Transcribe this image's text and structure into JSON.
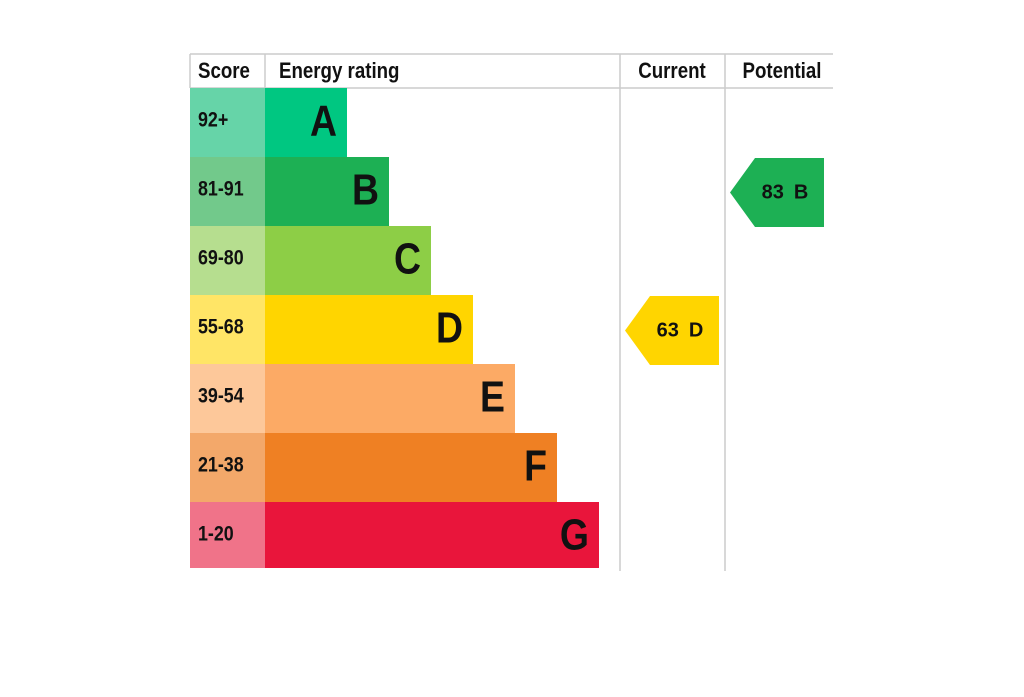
{
  "header": {
    "score": "Score",
    "energy_rating": "Energy rating",
    "current": "Current",
    "potential": "Potential"
  },
  "bands": [
    {
      "range": "92+",
      "letter": "A",
      "color": "#00c781",
      "score_color": "#66d4a8"
    },
    {
      "range": "81-91",
      "letter": "B",
      "color": "#1db054",
      "score_color": "#72c98b"
    },
    {
      "range": "69-80",
      "letter": "C",
      "color": "#8dce46",
      "score_color": "#b6de8f"
    },
    {
      "range": "55-68",
      "letter": "D",
      "color": "#ffd500",
      "score_color": "#ffe566"
    },
    {
      "range": "39-54",
      "letter": "E",
      "color": "#fcaa65",
      "score_color": "#fdc89a"
    },
    {
      "range": "21-38",
      "letter": "F",
      "color": "#ef8023",
      "score_color": "#f3a86a"
    },
    {
      "range": "1-20",
      "letter": "G",
      "color": "#e9153b",
      "score_color": "#f07389"
    }
  ],
  "current": {
    "score": 63,
    "rating": "D"
  },
  "potential": {
    "score": 83,
    "rating": "B"
  }
}
